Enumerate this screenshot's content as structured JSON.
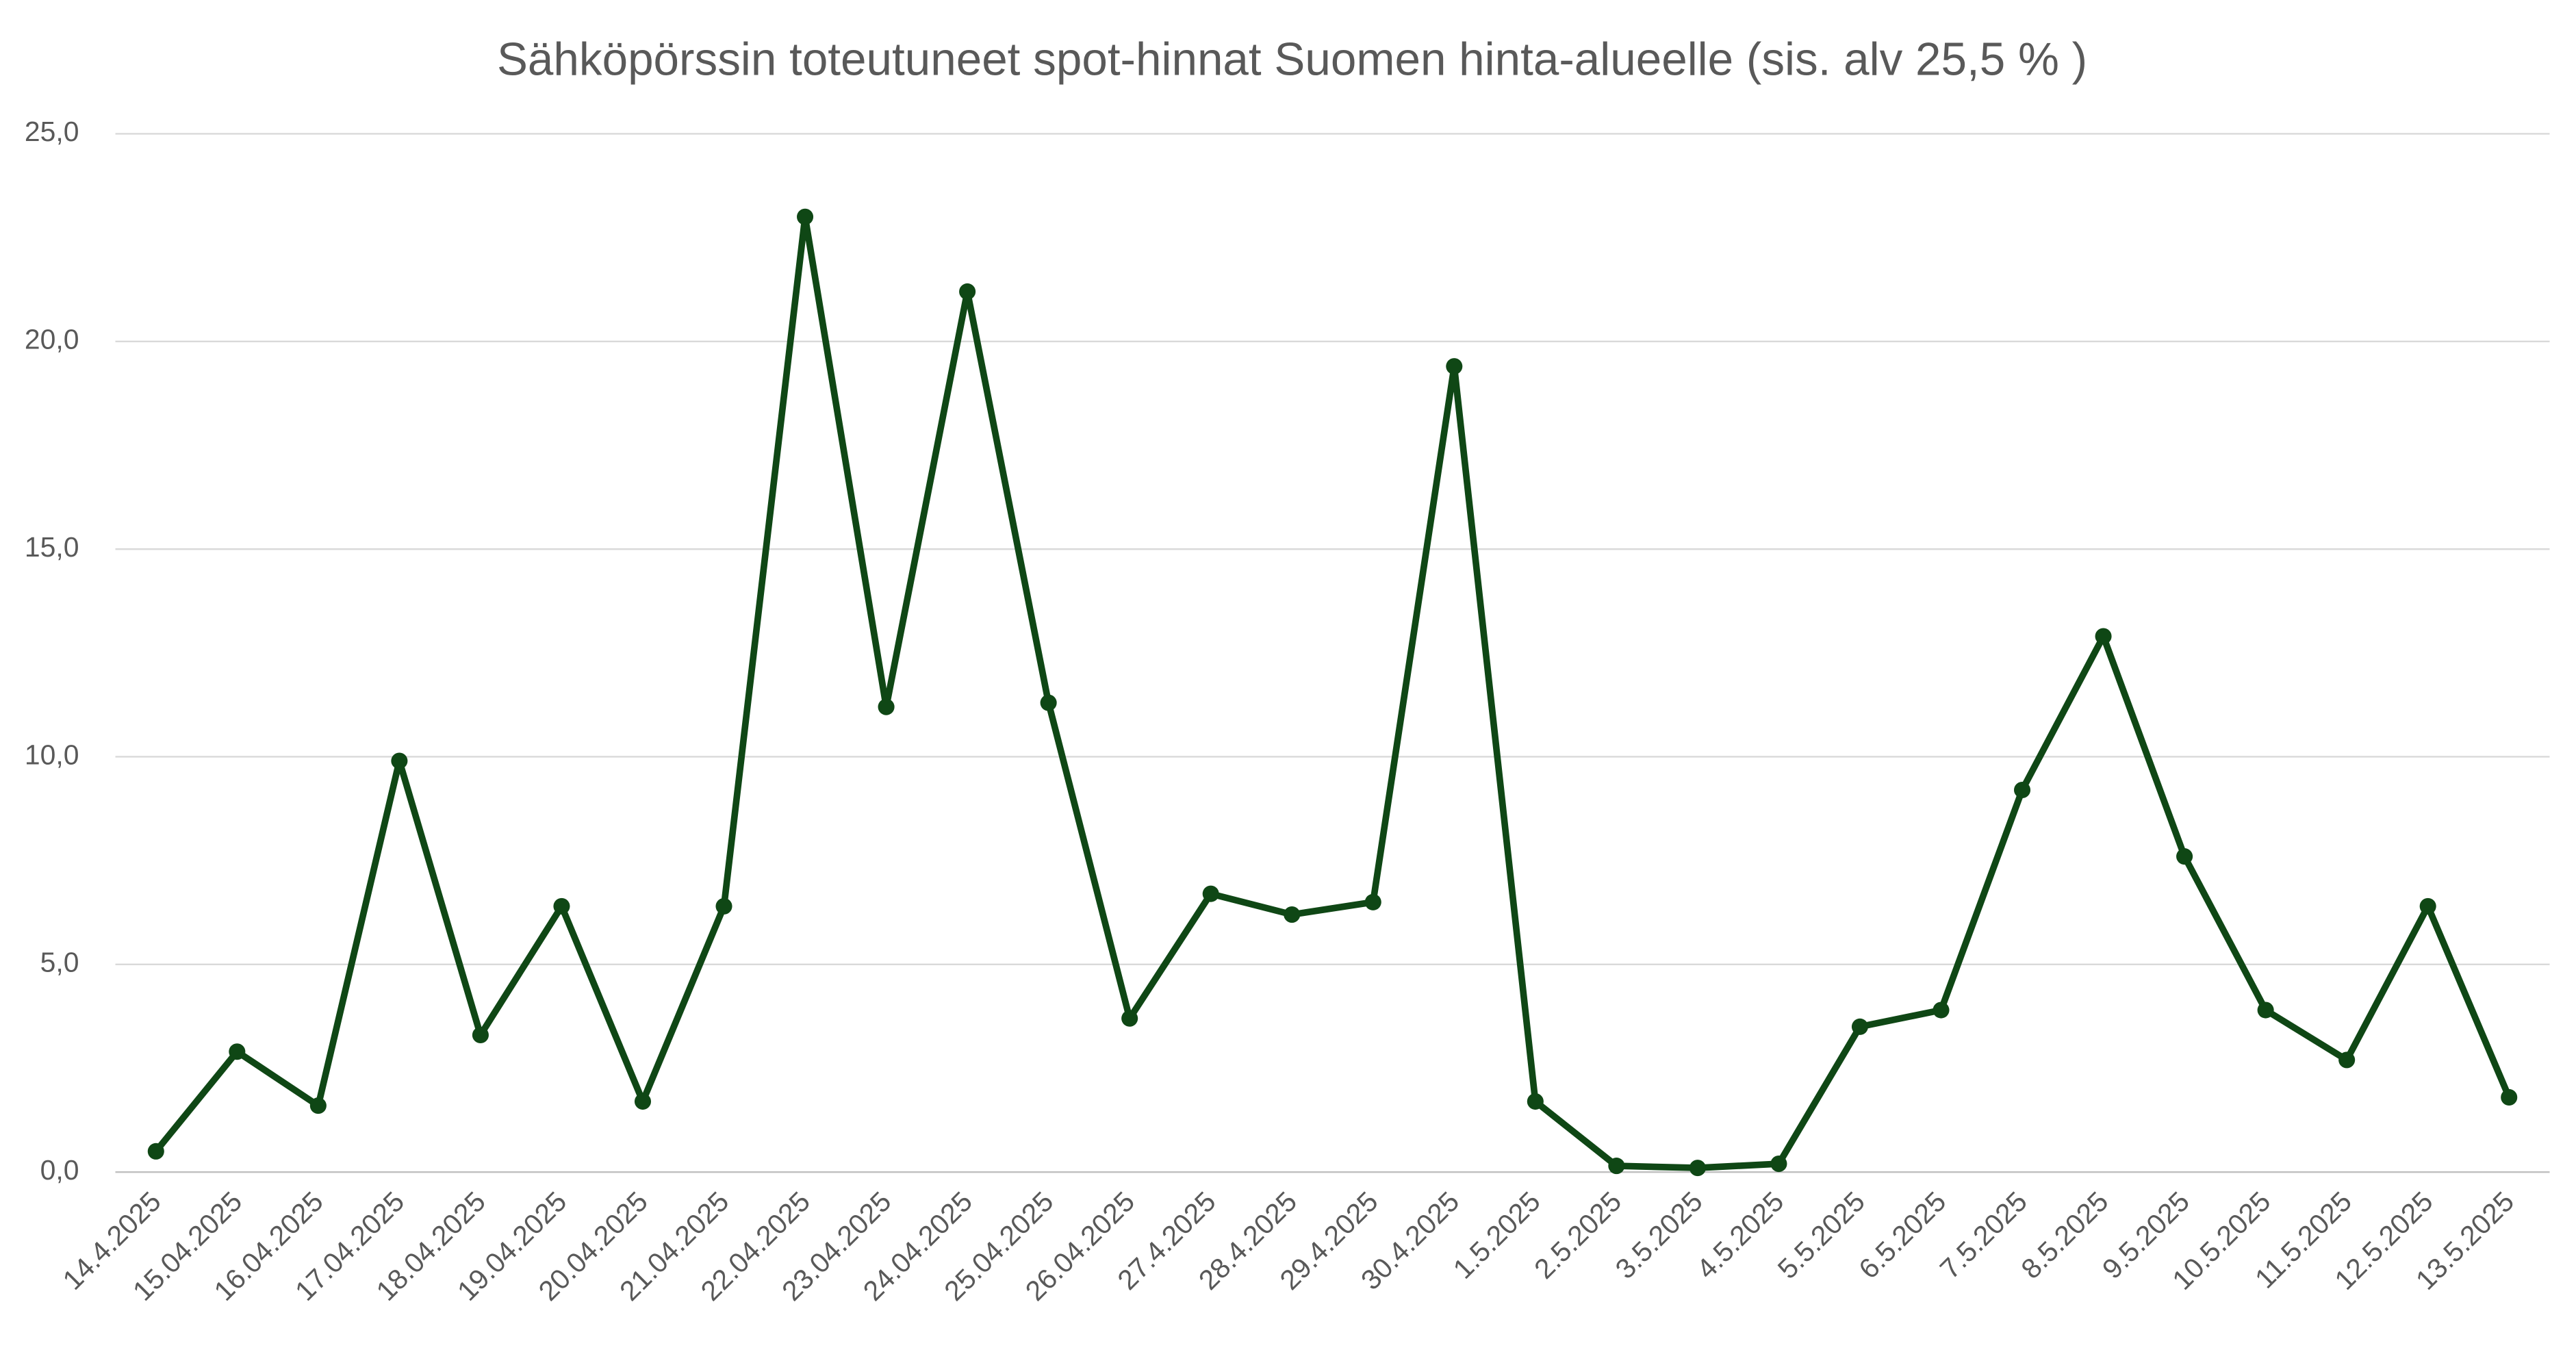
{
  "chart_data": {
    "type": "line",
    "title": "Sähköpörssin toteutuneet spot-hinnat Suomen hinta-alueelle (sis. alv 25,5 % )",
    "categories": [
      "14.4.2025",
      "15.04.2025",
      "16.04.2025",
      "17.04.2025",
      "18.04.2025",
      "19.04.2025",
      "20.04.2025",
      "21.04.2025",
      "22.04.2025",
      "23.04.2025",
      "24.04.2025",
      "25.04.2025",
      "26.04.2025",
      "27.4.2025",
      "28.4.2025",
      "29.4.2025",
      "30.4.2025",
      "1.5.2025",
      "2.5.2025",
      "3.5.2025",
      "4.5.2025",
      "5.5.2025",
      "6.5.2025",
      "7.5.2025",
      "8.5.2025",
      "9.5.2025",
      "10.5.2025",
      "11.5.2025",
      "12.5.2025",
      "13.5.2025"
    ],
    "series": [
      {
        "color": "#0f4715",
        "values": [
          0.5,
          2.9,
          1.6,
          9.9,
          3.3,
          6.4,
          1.7,
          6.4,
          23.0,
          11.2,
          21.2,
          11.3,
          3.7,
          6.7,
          6.2,
          6.5,
          19.4,
          1.7,
          0.15,
          0.1,
          0.2,
          3.5,
          3.9,
          9.2,
          12.9,
          7.6,
          3.9,
          2.7,
          6.4,
          1.8
        ]
      }
    ],
    "ylim": [
      0,
      25
    ],
    "yticks": [
      {
        "value": 0,
        "label": "0,0"
      },
      {
        "value": 5,
        "label": "5,0"
      },
      {
        "value": 10,
        "label": "10,0"
      },
      {
        "value": 15,
        "label": "15,0"
      },
      {
        "value": 20,
        "label": "20,0"
      },
      {
        "value": 25,
        "label": "25,0"
      }
    ],
    "grid": true
  }
}
